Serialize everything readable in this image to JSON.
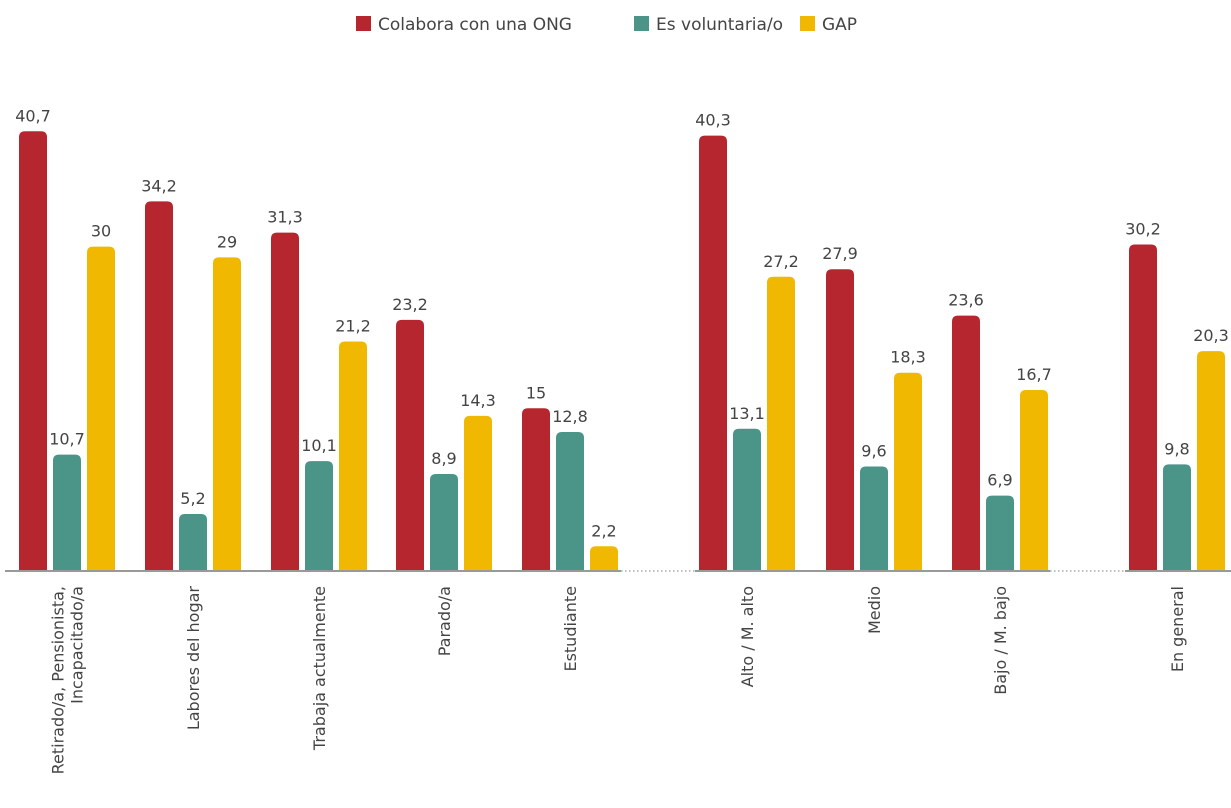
{
  "chart_data": {
    "type": "bar",
    "title": "",
    "xlabel": "",
    "ylabel": "",
    "ylim": [
      0,
      41
    ],
    "grid": false,
    "legend_position": "top-center",
    "colors": {
      "Colabora con una ONG": "#b5262f",
      "Es voluntaria/o": "#4a9488",
      "GAP": "#f0b800",
      "axis": "#999999",
      "text": "#444444"
    },
    "groups": [
      {
        "categories": [
          "Retirado/a, Pensionista, Incapacitado/a",
          "Labores del hogar",
          "Trabaja actualmente",
          "Parado/a",
          "Estudiante"
        ]
      },
      {
        "categories": [
          "Alto / M. alto",
          "Medio",
          "Bajo / M. bajo"
        ]
      },
      {
        "categories": [
          "En general"
        ]
      }
    ],
    "categories": [
      "Retirado/a, Pensionista, Incapacitado/a",
      "Labores del hogar",
      "Trabaja actualmente",
      "Parado/a",
      "Estudiante",
      "Alto / M. alto",
      "Medio",
      "Bajo / M. bajo",
      "En general"
    ],
    "series": [
      {
        "name": "Colabora con una ONG",
        "values": [
          40.7,
          34.2,
          31.3,
          23.2,
          15,
          40.3,
          27.9,
          23.6,
          30.2
        ],
        "labels": [
          "40,7",
          "34,2",
          "31,3",
          "23,2",
          "15",
          "40,3",
          "27,9",
          "23,6",
          "30,2"
        ]
      },
      {
        "name": "Es voluntaria/o",
        "values": [
          10.7,
          5.2,
          10.1,
          8.9,
          12.8,
          13.1,
          9.6,
          6.9,
          9.8
        ],
        "labels": [
          "10,7",
          "5,2",
          "10,1",
          "8,9",
          "12,8",
          "13,1",
          "9,6",
          "6,9",
          "9,8"
        ]
      },
      {
        "name": "GAP",
        "values": [
          30,
          29,
          21.2,
          14.3,
          2.2,
          27.2,
          18.3,
          16.7,
          20.3
        ],
        "labels": [
          "30",
          "29",
          "21,2",
          "14,3",
          "2,2",
          "27,2",
          "18,3",
          "16,7",
          "20,3"
        ]
      }
    ]
  }
}
